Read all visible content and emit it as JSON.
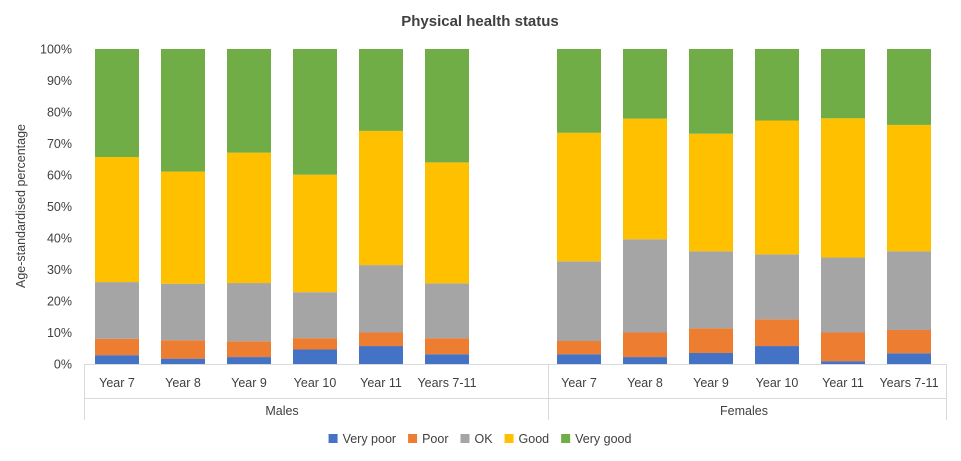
{
  "chart_data": {
    "type": "bar",
    "stacked": true,
    "title": "Physical health status",
    "ylabel": "Age-standardised percentage",
    "ylim": [
      0,
      100
    ],
    "yticks": [
      0,
      10,
      20,
      30,
      40,
      50,
      60,
      70,
      80,
      90,
      100
    ],
    "ytick_labels": [
      "0%",
      "10%",
      "20%",
      "30%",
      "40%",
      "50%",
      "60%",
      "70%",
      "80%",
      "90%",
      "100%"
    ],
    "groups": [
      {
        "name": "Males",
        "categories": [
          "Year 7",
          "Year 8",
          "Year 9",
          "Year 10",
          "Year 11",
          "Years 7-11"
        ]
      },
      {
        "name": "Females",
        "categories": [
          "Year 7",
          "Year 8",
          "Year 9",
          "Year 10",
          "Year 11",
          "Years 7-11"
        ]
      }
    ],
    "series": [
      {
        "name": "Very poor",
        "color": "#4472c4",
        "values": [
          2.8,
          1.7,
          2.2,
          4.6,
          5.7,
          3.1,
          3.1,
          2.2,
          3.5,
          5.7,
          0.9,
          3.4
        ]
      },
      {
        "name": "Poor",
        "color": "#ed7d31",
        "values": [
          5.2,
          5.8,
          5.0,
          3.6,
          4.3,
          5.1,
          4.2,
          7.8,
          7.8,
          8.5,
          9.1,
          7.4
        ]
      },
      {
        "name": "OK",
        "color": "#a5a5a5",
        "values": [
          18.0,
          18.0,
          18.5,
          14.6,
          21.4,
          17.4,
          25.3,
          29.6,
          24.5,
          20.6,
          23.8,
          25.0
        ]
      },
      {
        "name": "Good",
        "color": "#ffc000",
        "values": [
          39.7,
          35.6,
          41.4,
          37.3,
          42.6,
          38.4,
          40.8,
          38.3,
          37.3,
          42.5,
          44.2,
          40.1
        ]
      },
      {
        "name": "Very good",
        "color": "#70ad47",
        "values": [
          34.3,
          38.9,
          32.9,
          39.9,
          26.0,
          36.0,
          26.6,
          22.1,
          26.9,
          22.7,
          22.0,
          24.1
        ]
      }
    ],
    "legend_position": "bottom",
    "grid": false
  }
}
